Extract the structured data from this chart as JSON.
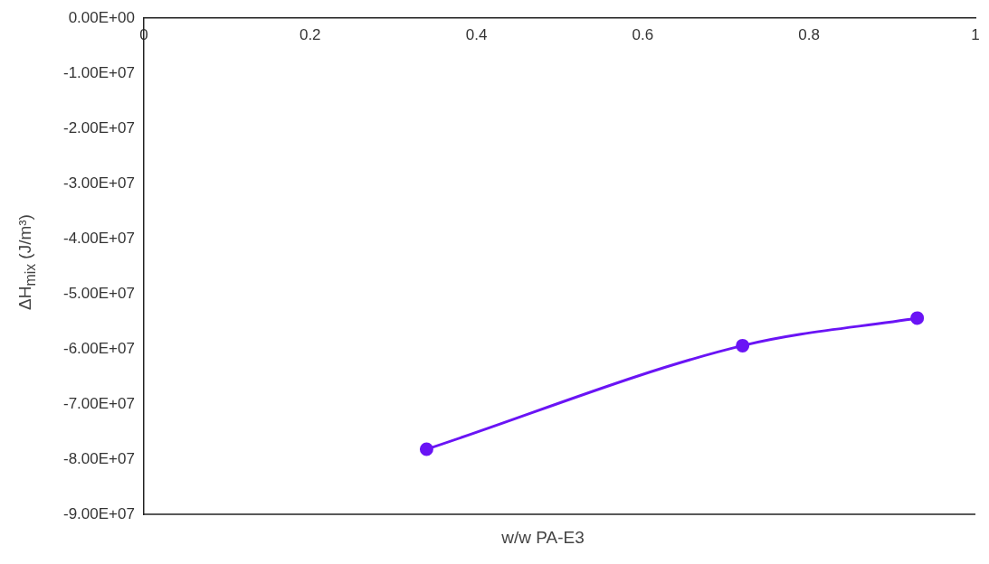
{
  "chart_data": {
    "type": "line",
    "xlabel": "w/w PA-E3",
    "ylabel": "ΔH$_{mix}$ (J/m³)",
    "x": [
      0.34,
      0.72,
      0.93
    ],
    "series": [
      {
        "color": "#6a14f5",
        "values": [
          -78200000,
          -59400000,
          -54400000
        ]
      }
    ],
    "xlim": [
      0,
      1
    ],
    "xticks": [
      0,
      0.2,
      0.4,
      0.6,
      0.8,
      1
    ],
    "ylim": [
      -90000000,
      0
    ],
    "yticks": [
      {
        "value": 0,
        "label": "0.00E+00"
      },
      {
        "value": -10000000,
        "label": "-1.00E+07"
      },
      {
        "value": -20000000,
        "label": "-2.00E+07"
      },
      {
        "value": -30000000,
        "label": "-3.00E+07"
      },
      {
        "value": -40000000,
        "label": "-4.00E+07"
      },
      {
        "value": -50000000,
        "label": "-5.00E+07"
      },
      {
        "value": -60000000,
        "label": "-6.00E+07"
      },
      {
        "value": -70000000,
        "label": "-7.00E+07"
      },
      {
        "value": -80000000,
        "label": "-8.00E+07"
      },
      {
        "value": -90000000,
        "label": "-9.00E+07"
      }
    ],
    "grid": false,
    "legend": false,
    "marker": "circle",
    "line_style": "solid"
  }
}
